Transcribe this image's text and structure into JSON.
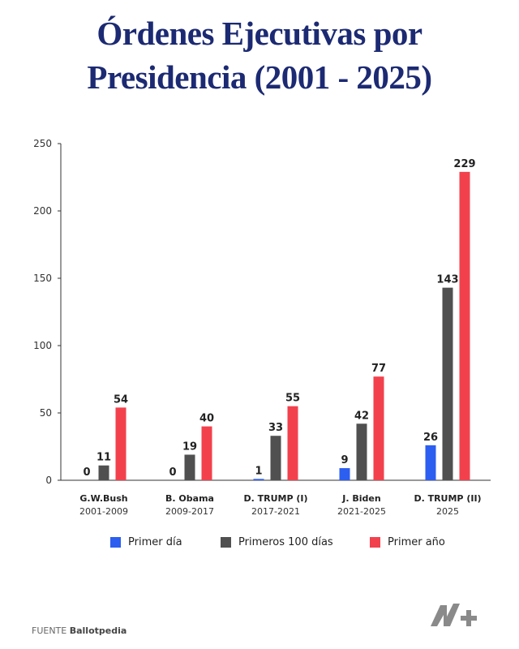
{
  "title": {
    "line1": "Órdenes Ejecutivas por",
    "line2": "Presidencia (2001 - 2025)"
  },
  "chart_data": {
    "type": "bar",
    "ylim": [
      0,
      250
    ],
    "yticks": [
      0,
      50,
      100,
      150,
      200,
      250
    ],
    "grid": false,
    "legend_position": "bottom",
    "categories": [
      {
        "name": "G.W.Bush",
        "years": "2001-2009"
      },
      {
        "name": "B. Obama",
        "years": "2009-2017"
      },
      {
        "name": "D. TRUMP (I)",
        "years": "2017-2021"
      },
      {
        "name": "J. Biden",
        "years": "2021-2025"
      },
      {
        "name": "D. TRUMP (II)",
        "years": "2025"
      }
    ],
    "series": [
      {
        "name": "Primer día",
        "color": "#2c5ef0",
        "values": [
          0,
          0,
          1,
          9,
          26
        ]
      },
      {
        "name": "Primeros 100 días",
        "color": "#505050",
        "values": [
          11,
          19,
          33,
          42,
          143
        ]
      },
      {
        "name": "Primer año",
        "color": "#f2414d",
        "values": [
          54,
          40,
          55,
          77,
          229
        ]
      }
    ]
  },
  "footer": {
    "label": "FUENTE",
    "source": "Ballotpedia"
  },
  "logo": {
    "icon": "n-plus-logo",
    "text": "N+"
  }
}
